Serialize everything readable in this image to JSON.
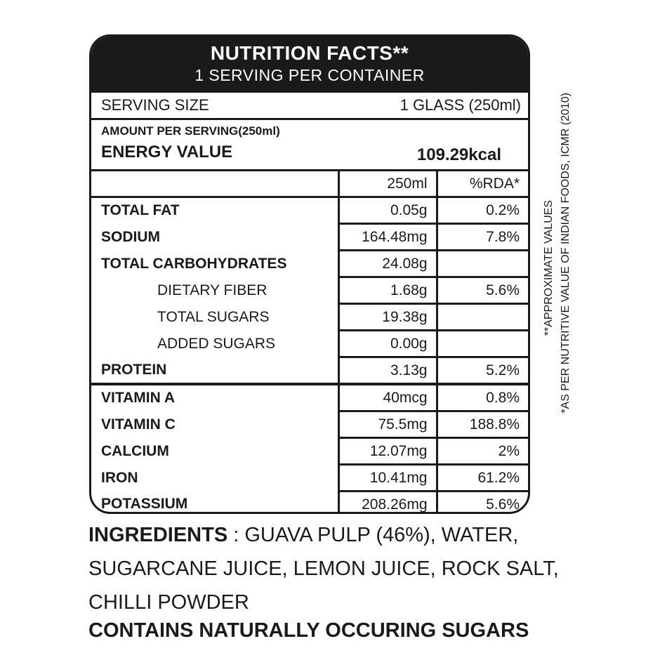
{
  "header": {
    "title": "NUTRITION FACTS**",
    "subtitle": "1 SERVING PER CONTAINER"
  },
  "serving": {
    "label": "SERVING SIZE",
    "value": "1 GLASS (250ml)"
  },
  "amount": {
    "label": "AMOUNT PER SERVING(250ml)",
    "energy_label": "ENERGY VALUE",
    "energy_value": "109.29kcal"
  },
  "columns": {
    "col1": "250ml",
    "col2": "%RDA*"
  },
  "rows": [
    {
      "name": "TOTAL FAT",
      "value": "0.05g",
      "rda": "0.2%"
    },
    {
      "name": "SODIUM",
      "value": "164.48mg",
      "rda": "7.8%"
    },
    {
      "name": "TOTAL CARBOHYDRATES",
      "value": "24.08g",
      "rda": ""
    },
    {
      "name": "DIETARY FIBER",
      "value": "1.68g",
      "rda": "5.6%"
    },
    {
      "name": "TOTAL SUGARS",
      "value": "19.38g",
      "rda": ""
    },
    {
      "name": "ADDED SUGARS",
      "value": "0.00g",
      "rda": ""
    },
    {
      "name": "PROTEIN",
      "value": "3.13g",
      "rda": "5.2%"
    },
    {
      "name": "VITAMIN A",
      "value": "40mcg",
      "rda": "0.8%"
    },
    {
      "name": "VITAMIN C",
      "value": "75.5mg",
      "rda": "188.8%"
    },
    {
      "name": "CALCIUM",
      "value": "12.07mg",
      "rda": "2%"
    },
    {
      "name": "IRON",
      "value": "10.41mg",
      "rda": "61.2%"
    },
    {
      "name": "POTASSIUM",
      "value": "208.26mg",
      "rda": "5.6%"
    }
  ],
  "notes": {
    "approx": "**APPROXIMATE VALUES",
    "source": "*AS PER NUTRITIVE VALUE OF INDIAN FOODS, ICMR (2010)"
  },
  "ingredients": {
    "label": "INGREDIENTS",
    "text": " : GUAVA PULP (46%), WATER, SUGARCANE JUICE, LEMON JUICE, ROCK SALT, CHILLI POWDER"
  },
  "contains": "CONTAINS NATURALLY OCCURING SUGARS"
}
